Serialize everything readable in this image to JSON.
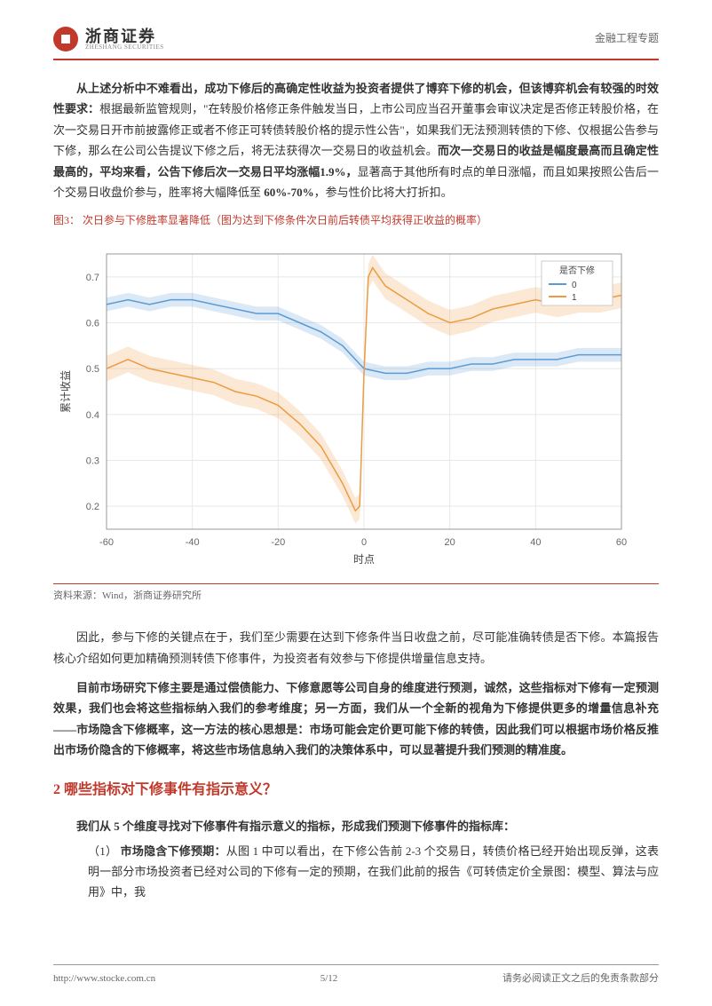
{
  "header": {
    "logo_cn": "浙商证券",
    "logo_en": "ZHESHANG SECURITIES",
    "right_text": "金融工程专题"
  },
  "paragraphs": {
    "p1": "从上述分析中不难看出，成功下修后的高确定性收益为投资者提供了博弈下修的机会，但该博弈机会有较强的时效性要求：",
    "p1b": "根据最新监管规则，\"在转股价格修正条件触发当日，上市公司应当召开董事会审议决定是否修正转股价格，在次一交易日开市前披露修正或者不修正可转债转股价格的提示性公告\"，如果我们无法预测转债的下修、仅根据公告参与下修，那么在公司公告提议下修之后，将无法获得次一交易日的收益机会。",
    "p1c": "而次一交易日的收益是幅度最高而且确定性最高的，平均来看，公告下修后次一交易日平均涨幅1.9%，",
    "p1d": "显著高于其他所有时点的单日涨幅，而且如果按照公告后一个交易日收盘价参与，胜率将大幅降低至",
    "p1e": " 60%-70%",
    "p1f": "，参与性价比将大打折扣。",
    "p2": "因此，参与下修的关键点在于，我们至少需要在达到下修条件当日收盘之前，尽可能准确转债是否下修。本篇报告核心介绍如何更加精确预测转债下修事件，为投资者有效参与下修提供增量信息支持。",
    "p3": "目前市场研究下修主要是通过偿债能力、下修意愿等公司自身的维度进行预测，诚然，这些指标对下修有一定预测效果，我们也会将这些指标纳入我们的参考维度；另一方面，我们从一个全新的视角为下修提供更多的增量信息补充——市场隐含下修概率，这一方法的核心思想是：市场可能会定价更可能下修的转债，因此我们可以根据市场价格反推出市场价隐含的下修概率，将这些市场信息纳入我们的决策体系中，可以显著提升我们预测的精准度。",
    "p4": "我们从 5 个维度寻找对下修事件有指示意义的指标，形成我们预测下修事件的指标库：",
    "li1_label": "（1）",
    "li1_title": "市场隐含下修预期：",
    "li1_body": "从图 1 中可以看出，在下修公告前 2-3 个交易日，转债价格已经开始出现反弹，这表明一部分市场投资者已经对公司的下修有一定的预期，在我们此前的报告《可转债定价全景图：模型、算法与应用》中，我"
  },
  "figure": {
    "caption": "图3：  次日参与下修胜率显著降低（图为达到下修条件次日前后转债平均获得正收益的概率）",
    "source": "资料来源：Wind，浙商证券研究所",
    "legend_title": "是否下修",
    "legend_items": [
      "0",
      "1"
    ],
    "xlabel": "时点",
    "ylabel": "累计收益",
    "xlim": [
      -60,
      60
    ],
    "ylim": [
      0.15,
      0.75
    ],
    "xticks": [
      -60,
      -40,
      -20,
      0,
      20,
      40,
      60
    ],
    "yticks": [
      0.2,
      0.3,
      0.4,
      0.5,
      0.6,
      0.7
    ],
    "colors": {
      "series0": "#5a9bd5",
      "series0_fill": "#5a9bd5",
      "series1": "#ed9b40",
      "series1_fill": "#ed9b40",
      "grid": "#e8e8e8",
      "axis": "#999",
      "background": "#ffffff"
    },
    "series0": {
      "x": [
        -60,
        -55,
        -50,
        -45,
        -40,
        -35,
        -30,
        -25,
        -20,
        -15,
        -10,
        -5,
        0,
        5,
        10,
        15,
        20,
        25,
        30,
        35,
        40,
        45,
        50,
        55,
        60
      ],
      "y": [
        0.64,
        0.65,
        0.64,
        0.65,
        0.65,
        0.64,
        0.63,
        0.62,
        0.62,
        0.6,
        0.58,
        0.55,
        0.5,
        0.49,
        0.49,
        0.5,
        0.5,
        0.51,
        0.51,
        0.52,
        0.52,
        0.52,
        0.53,
        0.53,
        0.53
      ],
      "band": 0.015
    },
    "series1": {
      "x": [
        -60,
        -55,
        -50,
        -45,
        -40,
        -35,
        -30,
        -25,
        -20,
        -15,
        -10,
        -5,
        -2,
        -1,
        0,
        1,
        2,
        5,
        10,
        15,
        20,
        25,
        30,
        35,
        40,
        45,
        50,
        55,
        60
      ],
      "y": [
        0.5,
        0.52,
        0.5,
        0.49,
        0.48,
        0.47,
        0.45,
        0.44,
        0.42,
        0.38,
        0.33,
        0.25,
        0.19,
        0.2,
        0.49,
        0.7,
        0.72,
        0.68,
        0.65,
        0.62,
        0.6,
        0.61,
        0.63,
        0.64,
        0.65,
        0.64,
        0.65,
        0.65,
        0.66
      ],
      "band": 0.028
    }
  },
  "section2": "2 哪些指标对下修事件有指示意义？",
  "footer": {
    "url": "http://www.stocke.com.cn",
    "page": "5/12",
    "disclaimer": "请务必阅读正文之后的免责条款部分"
  }
}
